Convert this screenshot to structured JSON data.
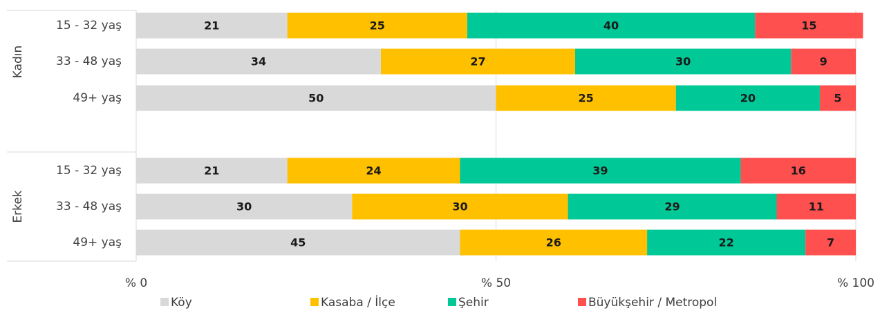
{
  "chart_data": {
    "type": "bar",
    "orientation": "horizontal",
    "stacked": true,
    "groups": [
      {
        "name": "Kadın",
        "categories": [
          "15 - 32 yaş",
          "33 - 48 yaş",
          "49+ yaş"
        ]
      },
      {
        "name": "Erkek",
        "categories": [
          "15 - 32 yaş",
          "33 - 48 yaş",
          "49+ yaş"
        ]
      }
    ],
    "series": [
      {
        "name": "Köy",
        "color": "#d9d9d9",
        "values": [
          21,
          34,
          50,
          21,
          30,
          45
        ]
      },
      {
        "name": "Kasaba / İlçe",
        "color": "#ffc000",
        "values": [
          25,
          27,
          25,
          24,
          30,
          26
        ]
      },
      {
        "name": "Şehir",
        "color": "#00c896",
        "values": [
          40,
          30,
          20,
          39,
          29,
          22
        ]
      },
      {
        "name": "Büyükşehir / Metropol",
        "color": "#ff5050",
        "values": [
          15,
          9,
          5,
          16,
          11,
          7
        ]
      }
    ],
    "xlim": [
      0,
      100
    ],
    "xticks": [
      {
        "value": 0,
        "label": "% 0"
      },
      {
        "value": 50,
        "label": "% 50"
      },
      {
        "value": 100,
        "label": "% 100"
      }
    ],
    "grid": true,
    "legend": "bottom"
  }
}
